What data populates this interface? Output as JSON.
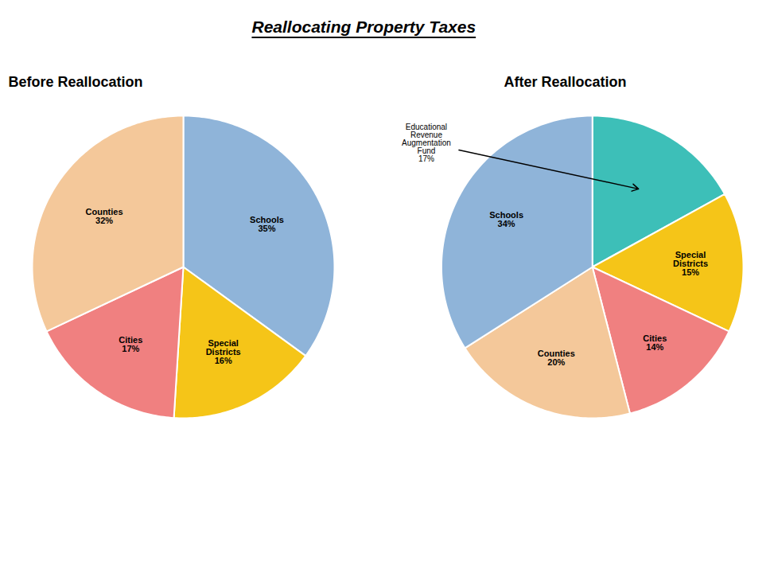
{
  "title": "Reallocating Property Taxes",
  "chart_data": [
    {
      "type": "pie",
      "title": "Before Reallocation",
      "categories": [
        "Schools",
        "Special\nDistricts",
        "Cities",
        "Counties"
      ],
      "values": [
        35,
        16,
        17,
        32
      ],
      "value_labels": [
        "35%",
        "16%",
        "17%",
        "32%"
      ],
      "colors": [
        "#8fb4d9",
        "#f5c518",
        "#f08080",
        "#f4c89a"
      ],
      "data_labels": true
    },
    {
      "type": "pie",
      "title": "After Reallocation",
      "categories": [
        "Educational\nRevenue\nAugmentation\nFund",
        "Special\nDistricts",
        "Cities",
        "Counties",
        "Schools"
      ],
      "values": [
        17,
        15,
        14,
        20,
        34
      ],
      "value_labels": [
        "17%",
        "15%",
        "14%",
        "20%",
        "34%"
      ],
      "colors": [
        "#3dbfb8",
        "#f5c518",
        "#f08080",
        "#f4c89a",
        "#8fb4d9"
      ],
      "data_labels": true,
      "annotations": [
        {
          "category": "Educational\nRevenue\nAugmentation\nFund"
        }
      ]
    }
  ]
}
